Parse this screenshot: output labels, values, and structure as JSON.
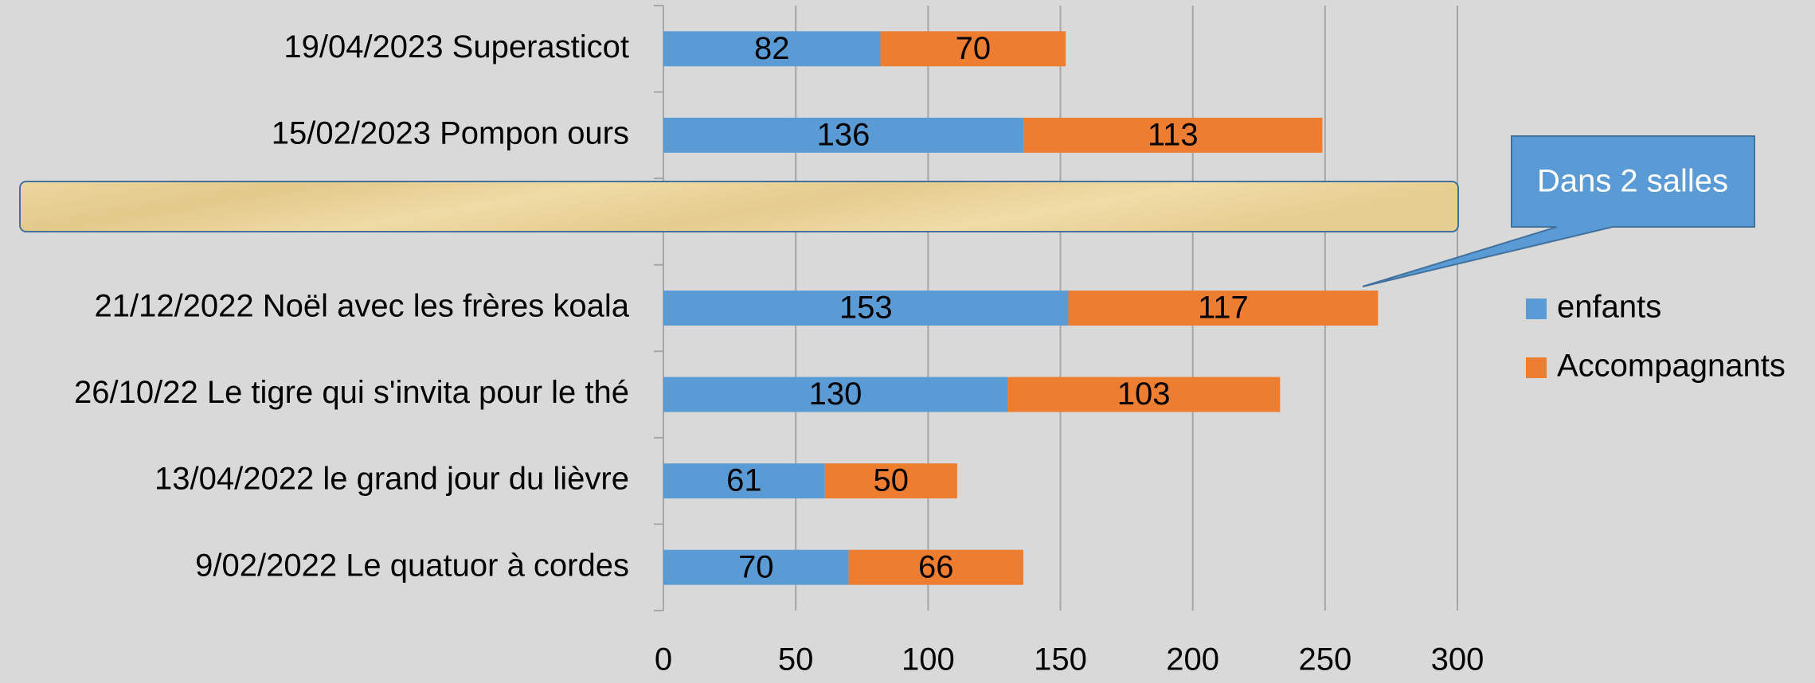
{
  "chart_data": {
    "type": "stacked-bar-horizontal",
    "categories": [
      "19/04/2023 Superasticot",
      "15/02/2023 Pompon ours",
      null,
      "21/12/2022 Noël avec les frères koala",
      "26/10/22 Le tigre qui s'invita pour le thé",
      "13/04/2022 le grand jour du lièvre",
      "9/02/2022 Le quatuor à cordes"
    ],
    "series": [
      {
        "name": "enfants",
        "color": "#5b9bd5",
        "values": [
          82,
          136,
          null,
          153,
          130,
          61,
          70
        ]
      },
      {
        "name": "Accompagnants",
        "color": "#ed7d31",
        "values": [
          70,
          113,
          null,
          117,
          103,
          50,
          66
        ]
      }
    ],
    "xlim": [
      0,
      300
    ],
    "xticks": [
      0,
      50,
      100,
      150,
      200,
      250,
      300
    ],
    "grid": true,
    "legend": "right",
    "annotation": "Dans 2 salles"
  }
}
